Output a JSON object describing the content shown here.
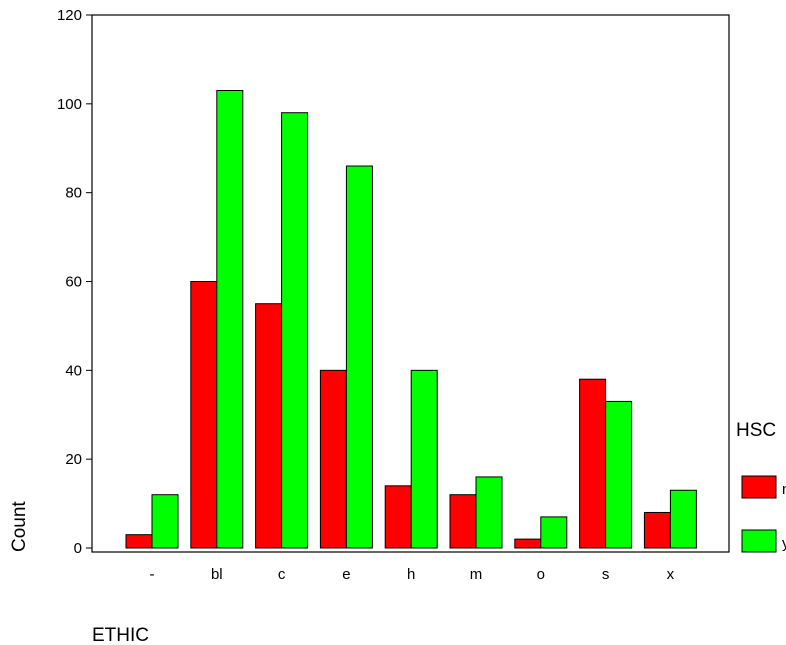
{
  "chart_data": {
    "type": "bar",
    "title": "",
    "xlabel": "ETHIC",
    "ylabel": "Count",
    "categories": [
      "-",
      "bl",
      "c",
      "e",
      "h",
      "m",
      "o",
      "s",
      "x"
    ],
    "ylim": [
      0,
      120
    ],
    "yticks": [
      0,
      20,
      40,
      60,
      80,
      100,
      120
    ],
    "grid": false,
    "legend": {
      "title": "HSC",
      "placement": "right"
    },
    "series": [
      {
        "name": "n",
        "color": "#ff0000",
        "values": [
          3,
          60,
          55,
          40,
          14,
          12,
          2,
          38,
          8
        ]
      },
      {
        "name": "y",
        "color": "#00ff00",
        "values": [
          12,
          103,
          98,
          86,
          40,
          16,
          7,
          33,
          13
        ]
      }
    ]
  }
}
